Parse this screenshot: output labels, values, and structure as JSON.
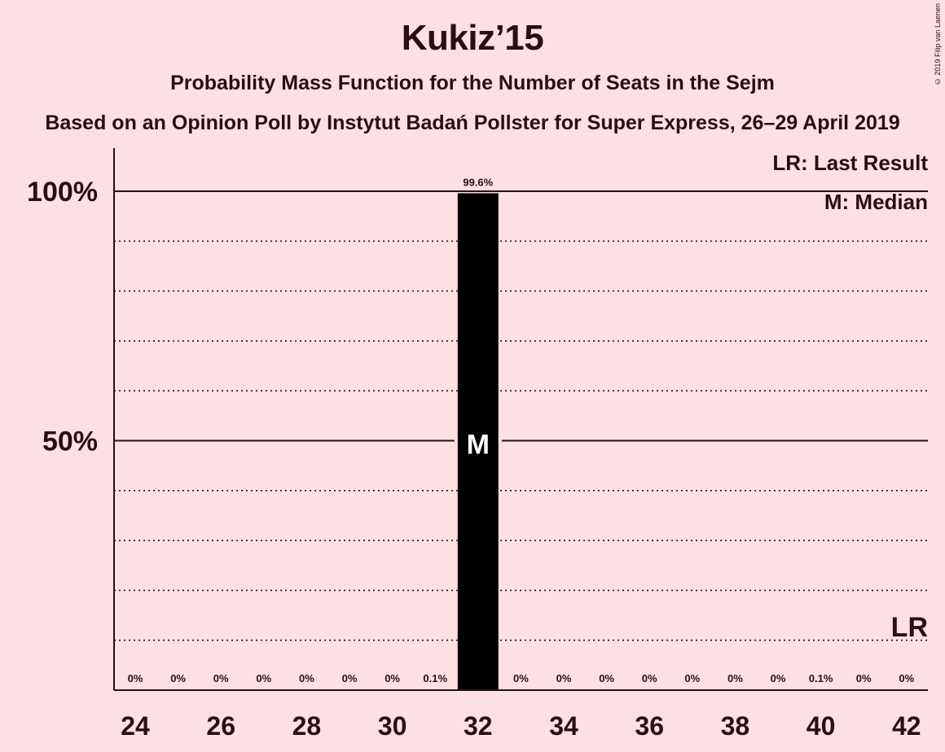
{
  "header": {
    "title": "Kukiz’15",
    "subtitle": "Probability Mass Function for the Number of Seats in the Sejm",
    "subtitle2": "Based on an Opinion Poll by Instytut Badań Pollster for Super Express, 26–29 April 2019",
    "copyright": "© 2019 Filip van Laenen"
  },
  "legend": {
    "last_result": "LR: Last Result",
    "median": "M: Median"
  },
  "colors": {
    "background": "#fde0e4",
    "bar": "#000000",
    "text": "#2a0f12"
  },
  "chart_data": {
    "type": "bar",
    "categories": [
      24,
      25,
      26,
      27,
      28,
      29,
      30,
      31,
      32,
      33,
      34,
      35,
      36,
      37,
      38,
      39,
      40,
      41,
      42
    ],
    "values": [
      0,
      0,
      0,
      0,
      0,
      0,
      0,
      0.1,
      99.6,
      0,
      0,
      0,
      0,
      0,
      0,
      0,
      0.1,
      0,
      0
    ],
    "value_labels": [
      "0%",
      "0%",
      "0%",
      "0%",
      "0%",
      "0%",
      "0%",
      "0.1%",
      "99.6%",
      "0%",
      "0%",
      "0%",
      "0%",
      "0%",
      "0%",
      "0%",
      "0.1%",
      "0%",
      "0%"
    ],
    "x_ticks": [
      24,
      26,
      28,
      30,
      32,
      34,
      36,
      38,
      40,
      42
    ],
    "y_ticks": [
      {
        "value": 50,
        "label": "50%"
      },
      {
        "value": 100,
        "label": "100%"
      }
    ],
    "ylim": [
      0,
      108
    ],
    "median": {
      "seats": 32,
      "label": "M"
    },
    "last_result": {
      "seats": 42,
      "label": "LR"
    },
    "grid": true
  }
}
